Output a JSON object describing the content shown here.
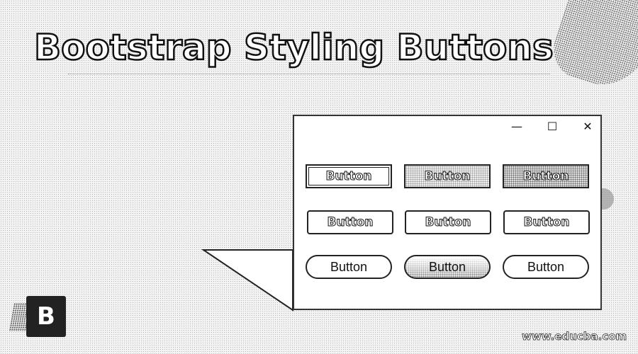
{
  "title": "Bootstrap Styling Buttons",
  "window": {
    "minimize_glyph": "—",
    "maximize_glyph": "☐",
    "close_glyph": "✕"
  },
  "buttons": [
    [
      "Button",
      "Button",
      "Button"
    ],
    [
      "Button",
      "Button",
      "Button"
    ],
    [
      "Button",
      "Button",
      "Button"
    ]
  ],
  "logo": {
    "letter": "B",
    "icon": "bootstrap-logo-icon"
  },
  "watermark": "www.educba.com"
}
